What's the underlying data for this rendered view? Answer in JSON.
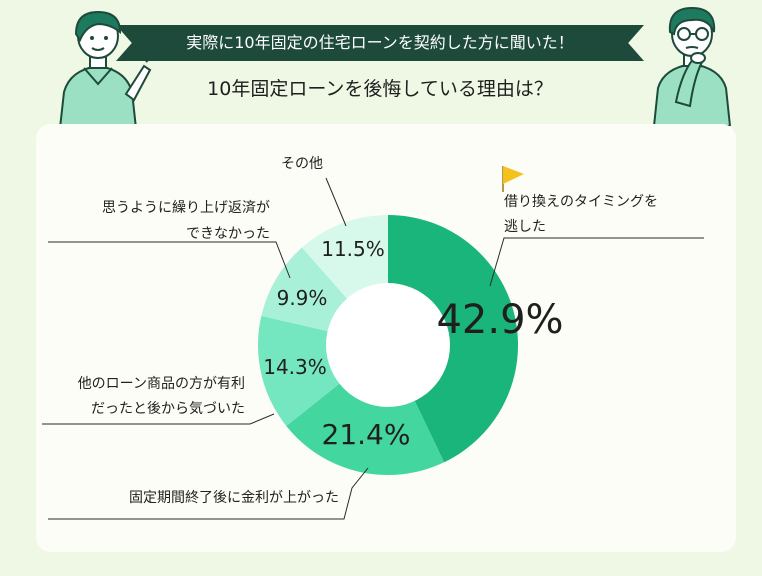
{
  "header": {
    "banner_text": "実際に10年固定の住宅ローンを契約した方に聞いた！",
    "subtitle": "10年固定ローンを後悔している理由は？"
  },
  "chart_data": {
    "type": "pie",
    "title": "10年固定ローンを後悔している理由は？",
    "categories": [
      "借り換えのタイミングを逃した",
      "固定期間終了後に金利が上がった",
      "他のローン商品の方が有利だったと後から気づいた",
      "思うように繰り上げ返済ができなかった",
      "その他"
    ],
    "label_lines": [
      [
        "借り換えのタイミングを",
        "逃した"
      ],
      [
        "固定期間終了後に金利が上がった"
      ],
      [
        "他のローン商品の方が有利",
        "だったと後から気づいた"
      ],
      [
        "思うように繰り上げ返済が",
        "できなかった"
      ],
      [
        "その他"
      ]
    ],
    "values": [
      42.9,
      21.4,
      14.3,
      9.9,
      11.5
    ],
    "value_labels": [
      "42.9%",
      "21.4%",
      "14.3%",
      "9.9%",
      "11.5%"
    ],
    "colors": [
      "#19b57a",
      "#43d69f",
      "#74e6c0",
      "#a9f0d8",
      "#d7f9ec"
    ],
    "donut": true,
    "legend": "none"
  }
}
